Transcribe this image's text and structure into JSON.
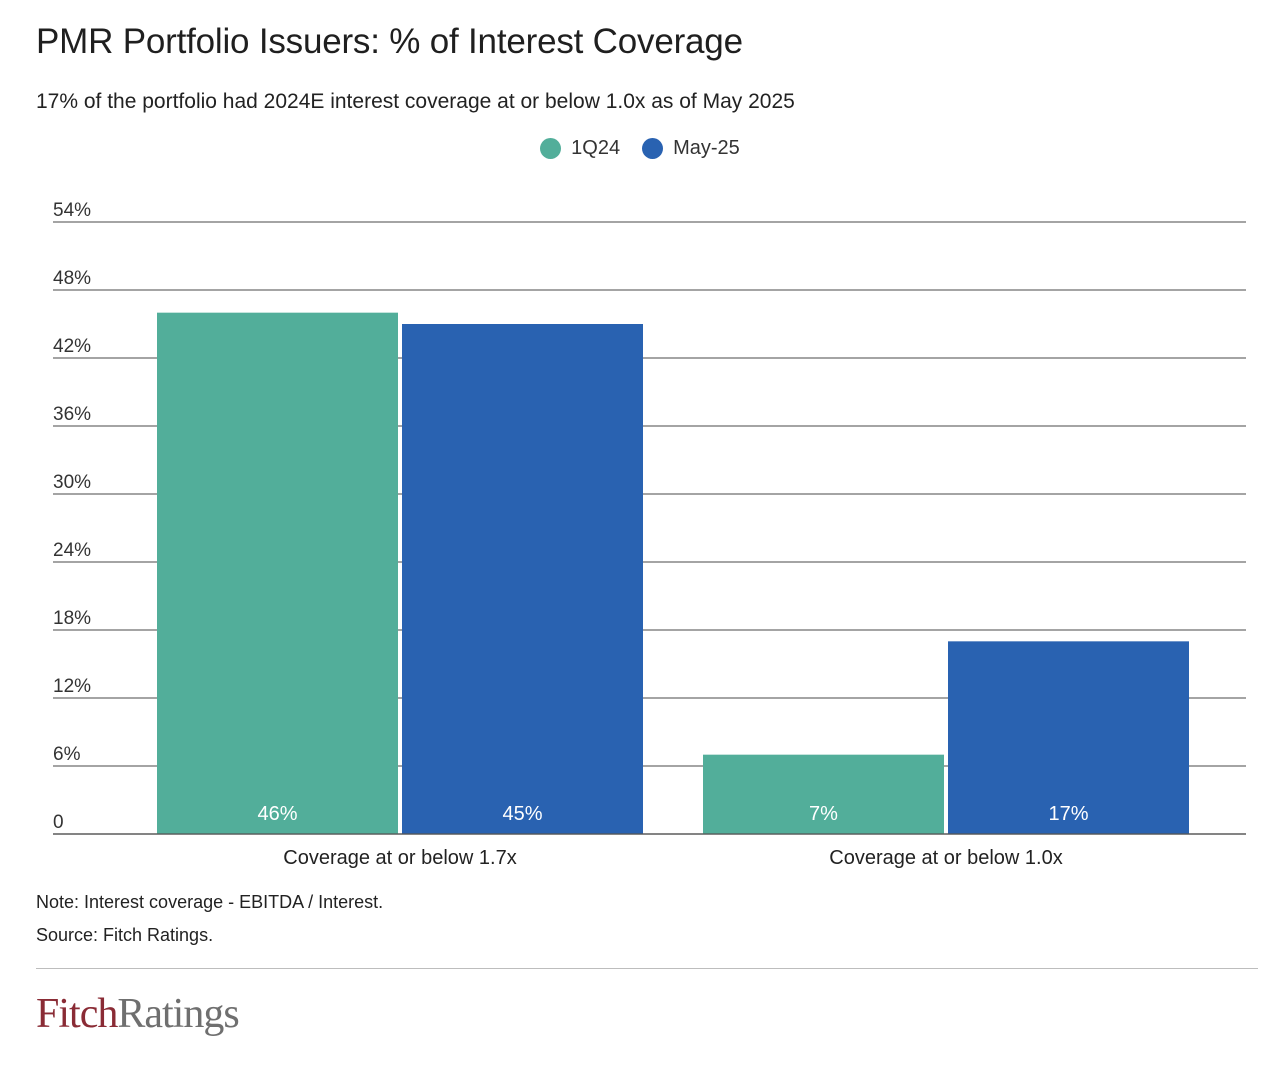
{
  "header": {
    "title": "PMR Portfolio Issuers: % of Interest Coverage",
    "subtitle": "17% of the portfolio had 2024E interest coverage at or below 1.0x as of May 2025"
  },
  "legend": {
    "items": [
      {
        "label": "1Q24",
        "color": "#52ae9a"
      },
      {
        "label": "May-25",
        "color": "#2962b1"
      }
    ]
  },
  "chart_data": {
    "type": "bar",
    "categories": [
      "Coverage at or below 1.7x",
      "Coverage at or below 1.0x"
    ],
    "series": [
      {
        "name": "1Q24",
        "color": "#52ae9a",
        "values": [
          46,
          7
        ],
        "labels": [
          "46%",
          "7%"
        ]
      },
      {
        "name": "May-25",
        "color": "#2962b1",
        "values": [
          45,
          17
        ],
        "labels": [
          "45%",
          "17%"
        ]
      }
    ],
    "ylim": [
      0,
      54
    ],
    "yticks": [
      0,
      6,
      12,
      18,
      24,
      30,
      36,
      42,
      48,
      54
    ],
    "ytick_labels": [
      "0",
      "6%",
      "12%",
      "18%",
      "24%",
      "30%",
      "36%",
      "42%",
      "48%",
      "54%"
    ],
    "title": "PMR Portfolio Issuers: % of Interest Coverage",
    "xlabel": "",
    "ylabel": "",
    "grid": true,
    "legend_position": "top-center"
  },
  "footer": {
    "note": "Note: Interest coverage - EBITDA / Interest.",
    "source": "Source: Fitch Ratings.",
    "logo_part1": "Fitch",
    "logo_part2": "Ratings"
  }
}
